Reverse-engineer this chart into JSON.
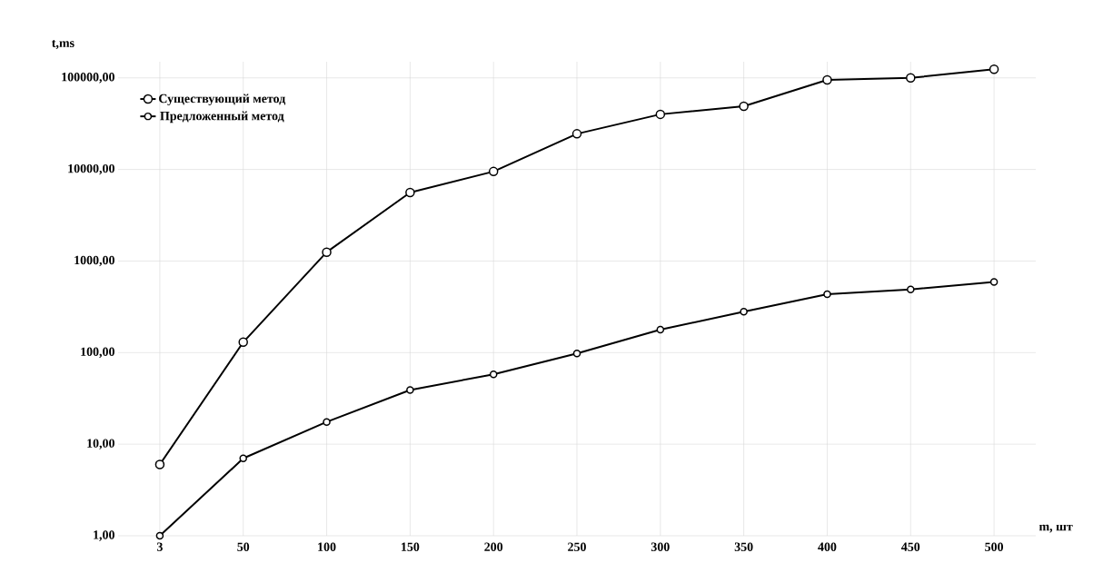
{
  "chart_data": {
    "type": "line",
    "xlabel": "m, шт",
    "ylabel": "t,ms",
    "categories": [
      "3",
      "50",
      "100",
      "150",
      "200",
      "250",
      "300",
      "350",
      "400",
      "450",
      "500"
    ],
    "series": [
      {
        "name": "Существующий метод",
        "color": "#000000",
        "marker": "circle",
        "values": [
          6,
          130,
          1250,
          5600,
          9500,
          24500,
          40000,
          49000,
          95000,
          100000,
          124000
        ]
      },
      {
        "name": "Предложенный метод",
        "color": "#000000",
        "marker": "circle",
        "values": [
          1,
          7,
          17.5,
          39,
          58,
          98,
          178,
          280,
          435,
          490,
          590
        ]
      }
    ],
    "log": "y",
    "ylim": [
      1,
      150000
    ],
    "yticks": [
      {
        "value": 1,
        "label": "1,00"
      },
      {
        "value": 10,
        "label": "10,00"
      },
      {
        "value": 100,
        "label": "100,00"
      },
      {
        "value": 1000,
        "label": "1000,00"
      },
      {
        "value": 10000,
        "label": "10000,00"
      },
      {
        "value": 100000,
        "label": "100000,00"
      }
    ],
    "grid": true,
    "legend": "top left",
    "line_style": "solid"
  }
}
